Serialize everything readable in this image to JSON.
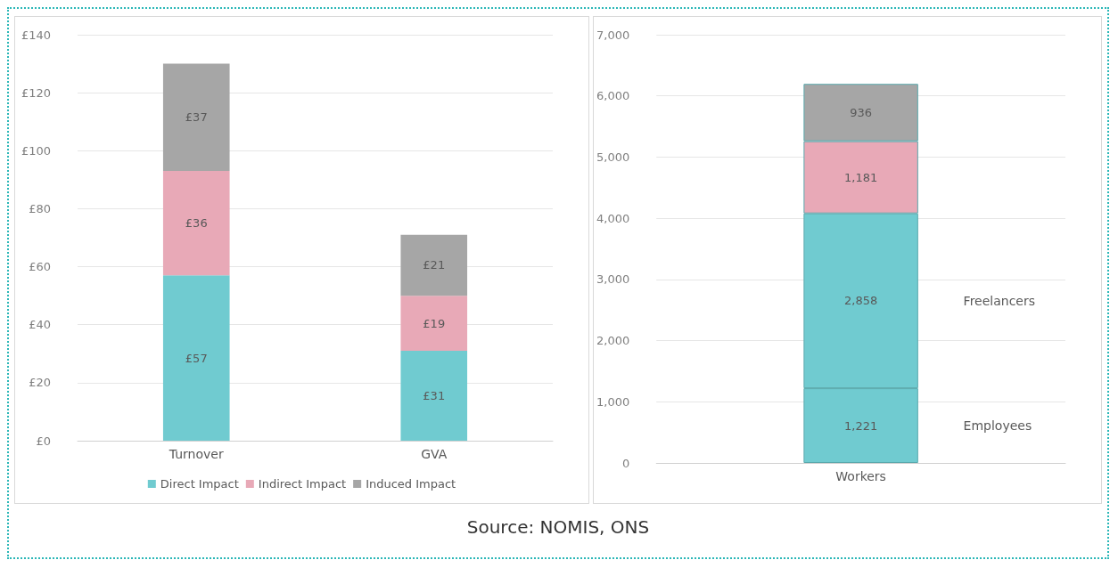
{
  "chart_data": [
    {
      "type": "bar",
      "stacked": true,
      "categories": [
        "Turnover",
        "GVA"
      ],
      "series": [
        {
          "name": "Direct Impact",
          "color": "#70cbd0",
          "values": [
            57,
            31
          ],
          "value_labels": [
            "£57",
            "£31"
          ]
        },
        {
          "name": "Indirect Impact",
          "color": "#e8a9b7",
          "values": [
            36,
            19
          ],
          "value_labels": [
            "£36",
            "£19"
          ]
        },
        {
          "name": "Induced Impact",
          "color": "#a6a6a6",
          "values": [
            37,
            21
          ],
          "value_labels": [
            "£37",
            "£21"
          ]
        }
      ],
      "ylim": [
        0,
        140
      ],
      "yticks": [
        {
          "value": 0,
          "label": "£0"
        },
        {
          "value": 20,
          "label": "£20"
        },
        {
          "value": 40,
          "label": "£40"
        },
        {
          "value": 60,
          "label": "£60"
        },
        {
          "value": 80,
          "label": "£80"
        },
        {
          "value": 100,
          "label": "£100"
        },
        {
          "value": 120,
          "label": "£120"
        },
        {
          "value": 140,
          "label": "£140"
        }
      ],
      "grid": "y",
      "legend": "bottom"
    },
    {
      "type": "bar",
      "stacked": true,
      "categories": [
        "Workers"
      ],
      "series": [
        {
          "name": "Employees",
          "color": "#70cbd0",
          "values": [
            1221
          ],
          "value_labels": [
            "1,221"
          ]
        },
        {
          "name": "Freelancers",
          "color": "#70cbd0",
          "values": [
            2858
          ],
          "value_labels": [
            "2,858"
          ]
        },
        {
          "color": "#e8a9b7",
          "values": [
            1181
          ],
          "value_labels": [
            "1,181"
          ]
        },
        {
          "color": "#a6a6a6",
          "values": [
            936
          ],
          "value_labels": [
            "936"
          ]
        }
      ],
      "ylim": [
        0,
        7000
      ],
      "yticks": [
        0,
        {
          "value": 1000,
          "label": "1,000"
        },
        {
          "value": 2000,
          "label": "2,000"
        },
        {
          "value": 3000,
          "label": "3,000"
        },
        {
          "value": 4000,
          "label": "4,000"
        },
        {
          "value": 5000,
          "label": "5,000"
        },
        {
          "value": 6000,
          "label": "6,000"
        },
        {
          "value": 7000,
          "label": "7,000"
        }
      ],
      "grid": "y",
      "annotations": [
        "Source: NOMIS, ONS"
      ]
    }
  ]
}
